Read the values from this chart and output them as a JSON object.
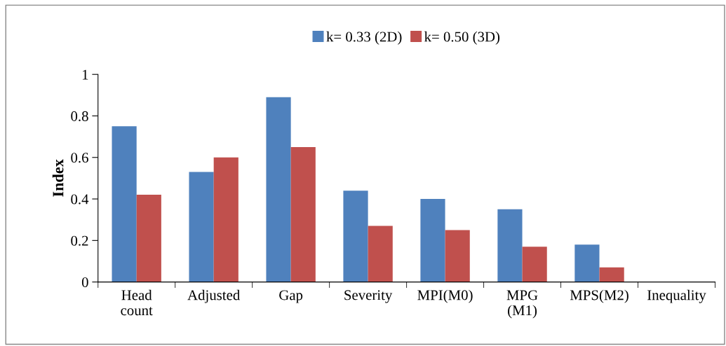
{
  "chart_data": {
    "type": "bar",
    "ylabel": "Index",
    "categories": [
      "Head\ncount",
      "Adjusted",
      "Gap",
      "Severity",
      "MPI(M0)",
      "MPG\n(M1)",
      "MPS(M2)",
      "Inequality"
    ],
    "series": [
      {
        "name": "k= 0.33 (2D)",
        "color": "#4f81bd",
        "values": [
          0.75,
          0.53,
          0.89,
          0.44,
          0.4,
          0.35,
          0.18,
          null
        ]
      },
      {
        "name": "k= 0.50 (3D)",
        "color": "#c0504d",
        "values": [
          0.42,
          0.6,
          0.65,
          0.27,
          0.25,
          0.17,
          0.07,
          null
        ]
      }
    ],
    "ylim": [
      0,
      1
    ],
    "yticks": [
      0,
      0.2,
      0.4,
      0.6,
      0.8,
      1
    ],
    "grid": false,
    "legend": "top"
  }
}
